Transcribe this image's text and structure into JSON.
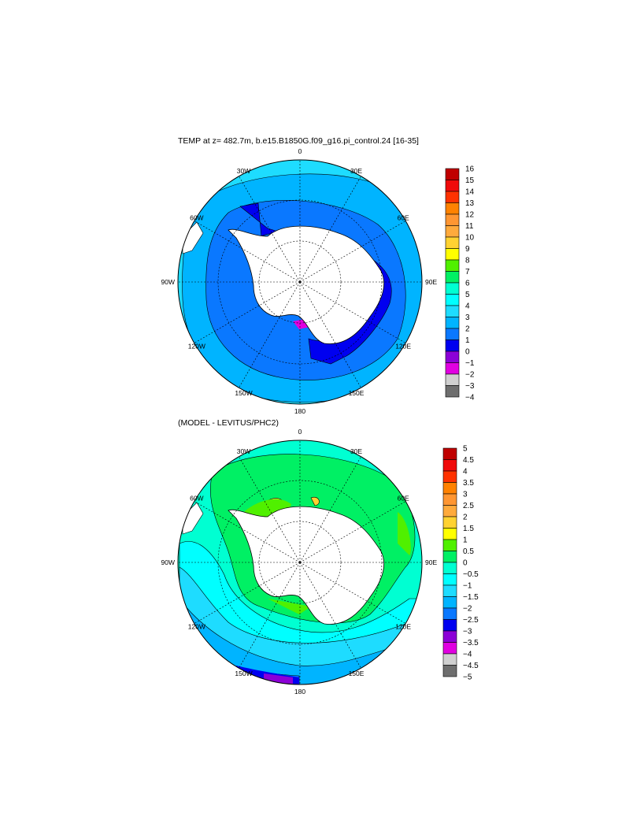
{
  "chart_data": [
    {
      "type": "heatmap",
      "projection": "south-polar-stereographic",
      "title": "TEMP at z= 482.7m, b.e15.B1850G.f09_g16.pi_control.24 [16-35]",
      "lon_labels": [
        "0",
        "30E",
        "60E",
        "90E",
        "120E",
        "150E",
        "180",
        "150W",
        "120W",
        "90W",
        "60W",
        "30W"
      ],
      "colorbar": {
        "levels": [
          "16",
          "15",
          "14",
          "13",
          "12",
          "11",
          "10",
          "9",
          "8",
          "7",
          "6",
          "5",
          "4",
          "3",
          "2",
          "1",
          "0",
          "−1",
          "−2",
          "−3",
          "−4"
        ],
        "range": [
          -4,
          16
        ]
      }
    },
    {
      "type": "heatmap",
      "projection": "south-polar-stereographic",
      "title": "(MODEL - LEVITUS/PHC2)",
      "lon_labels": [
        "0",
        "30E",
        "60E",
        "90E",
        "120E",
        "150E",
        "180",
        "150W",
        "120W",
        "90W",
        "60W",
        "30W"
      ],
      "colorbar": {
        "levels": [
          "5",
          "4.5",
          "4",
          "3.5",
          "3",
          "2.5",
          "2",
          "1.5",
          "1",
          "0.5",
          "0",
          "−0.5",
          "−1",
          "−1.5",
          "−2",
          "−2.5",
          "−3",
          "−3.5",
          "−4",
          "−4.5",
          "−5"
        ],
        "range": [
          -5,
          5
        ]
      }
    }
  ],
  "palette_top_to_bottom": [
    "#c00000",
    "#f00a0a",
    "#ff3200",
    "#ff8200",
    "#ff9632",
    "#ffaa3c",
    "#ffd232",
    "#ffff00",
    "#50f000",
    "#00f064",
    "#00ffd2",
    "#00ffff",
    "#1edcff",
    "#00b4ff",
    "#0a78ff",
    "#0000f0",
    "#8c00d7",
    "#e100e1",
    "#d0d0d0",
    "#6e6e6e"
  ]
}
